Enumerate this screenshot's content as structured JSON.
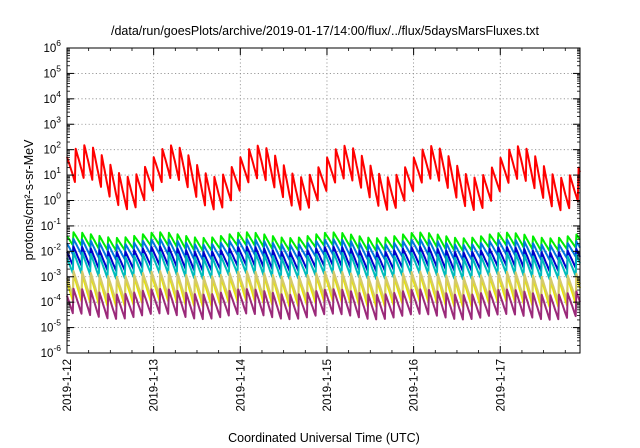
{
  "chart_data": {
    "type": "line",
    "title": "/data/run/goesPlots/archive/2019-01-17/14:00/flux/../flux/5daysMarsFluxes.txt",
    "xlabel": "Coordinated Universal Time (UTC)",
    "ylabel": "protons/cm²-s-sr-MeV",
    "y_scale": "log",
    "ylim": [
      1e-06,
      1000000.0
    ],
    "y_ticks": [
      {
        "exp": "-6"
      },
      {
        "exp": "-5"
      },
      {
        "exp": "-4"
      },
      {
        "exp": "-3"
      },
      {
        "exp": "-2"
      },
      {
        "exp": "-1"
      },
      {
        "exp": "0"
      },
      {
        "exp": "1"
      },
      {
        "exp": "2"
      },
      {
        "exp": "3"
      },
      {
        "exp": "4"
      },
      {
        "exp": "5"
      },
      {
        "exp": "6"
      }
    ],
    "x_range": [
      "2019-1-12",
      "2019-1-17 22:00"
    ],
    "x_ticks": [
      "2019-1-12",
      "2019-1-13",
      "2019-1-14",
      "2019-1-15",
      "2019-1-16",
      "2019-1-17"
    ],
    "grid": true,
    "x_days": 5.92,
    "series": [
      {
        "color": "#ff0000",
        "base": 1.0,
        "amp": 0.5,
        "env_amp": 0.6,
        "dip": 1.4,
        "period": 0.1,
        "day_offset": 0.0
      },
      {
        "color": "#00ee00",
        "base": -1.55,
        "amp": 0.3,
        "env_amp": 0.05,
        "dip": 0.55,
        "period": 0.1,
        "day_offset": 0.03
      },
      {
        "color": "#0077dd",
        "base": -1.85,
        "amp": 0.3,
        "env_amp": 0.05,
        "dip": 0.65,
        "period": 0.1,
        "day_offset": 0.03
      },
      {
        "color": "#0000cc",
        "base": -2.2,
        "amp": 0.3,
        "env_amp": 0.05,
        "dip": 0.8,
        "period": 0.1,
        "day_offset": 0.03
      },
      {
        "color": "#00bbbb",
        "base": -2.45,
        "amp": 0.3,
        "env_amp": 0.05,
        "dip": 0.9,
        "period": 0.1,
        "day_offset": 0.03
      },
      {
        "color": "#e8e800",
        "base": -3.4,
        "amp": 0.3,
        "env_amp": 0.05,
        "dip": 1.15,
        "period": 0.1,
        "day_offset": 0.03
      },
      {
        "color": "#d4c96a",
        "base": -3.25,
        "amp": 0.3,
        "env_amp": 0.05,
        "dip": 1.05,
        "period": 0.1,
        "day_offset": 0.03
      },
      {
        "color": "#9b2a7a",
        "base": -3.95,
        "amp": 0.3,
        "env_amp": 0.05,
        "dip": 1.05,
        "period": 0.1,
        "day_offset": 0.03
      }
    ]
  }
}
